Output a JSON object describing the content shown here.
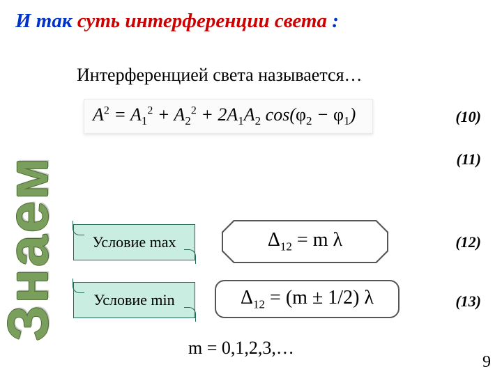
{
  "title": {
    "part1": "И так",
    "part2": " суть интерференции света",
    "part3": " :",
    "color1": "#0033cc",
    "color2": "#cc0000"
  },
  "subtitle": "Интерференцией света называется…",
  "vertical_label": "Знаем",
  "equations": {
    "eq10": {
      "num": "(10)"
    },
    "eq11": {
      "num": "(11)"
    },
    "eq12": {
      "num": "(12)",
      "cond": "Условие max",
      "formula_delta": "Δ",
      "formula_sub": "12",
      "formula_rest": " = m λ"
    },
    "eq13": {
      "num": "(13)",
      "cond": "Условие min",
      "formula_delta": "Δ",
      "formula_sub": "12",
      "formula_rest": " = (m ± 1/2) λ"
    }
  },
  "m_line": "m = 0,1,2,3,…",
  "page_number": "9",
  "scroll": {
    "bg": "#c9ede0",
    "border": "#216b54"
  }
}
